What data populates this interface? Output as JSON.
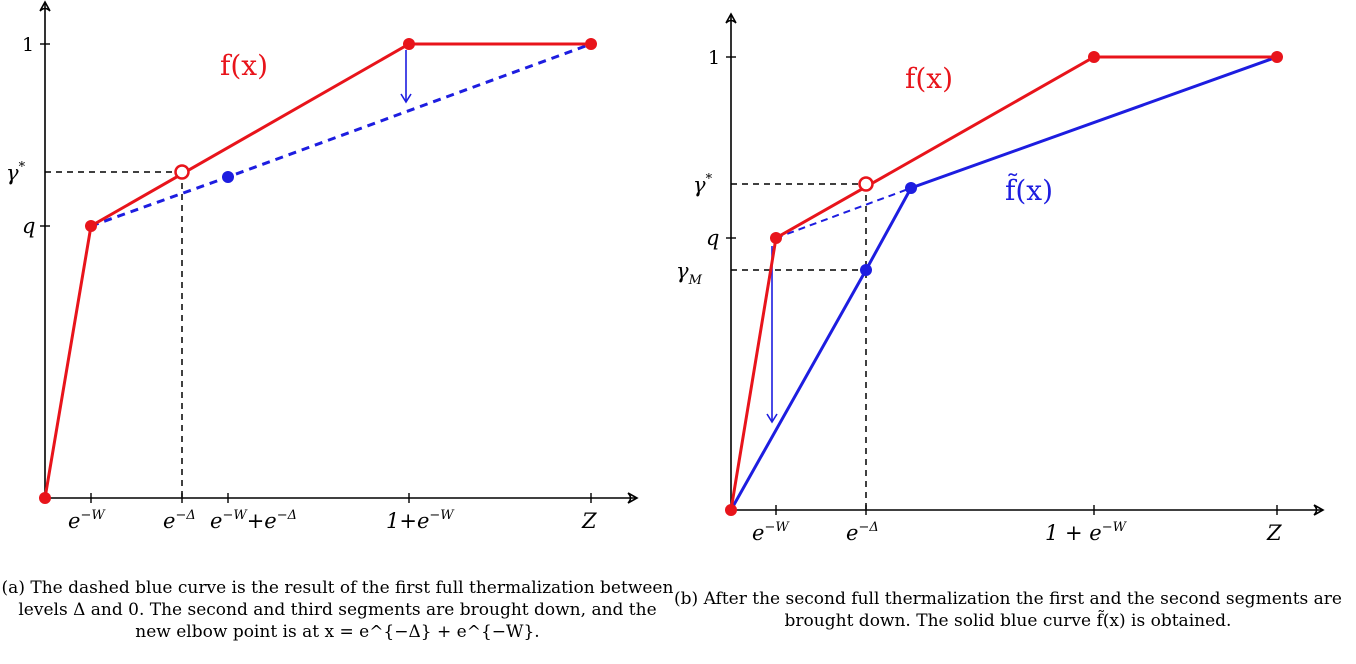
{
  "panels": [
    {
      "id": "a",
      "y_ticks": {
        "one": "1",
        "gamma_star": "γ",
        "q": "q"
      },
      "x_ticks": {
        "e_w": "e",
        "e_delta": "e",
        "sum": "e+e",
        "one_plus": "1+e",
        "z": "Z"
      },
      "curve_label": "f(x)",
      "caption": "(a) The dashed blue curve is the result of the first full thermalization between levels Δ and 0. The second and third segments are brought down, and the new elbow point is at x = e^{−Δ} + e^{−W}."
    },
    {
      "id": "b",
      "y_ticks": {
        "one": "1",
        "gamma_star": "γ",
        "q": "q",
        "gamma_m": "γ"
      },
      "x_ticks": {
        "e_w": "e",
        "e_delta": "e",
        "one_plus": "1 + e",
        "z": "Z"
      },
      "curve_label": "f(x)",
      "curve_label_blue": "f̃(x)",
      "caption": "(b) After the second full thermalization the first and the second segments are brought down. The solid blue curve f̃(x) is obtained."
    }
  ],
  "colors": {
    "red": "#e8141b",
    "blue": "#1d1de0",
    "black": "#000000"
  }
}
